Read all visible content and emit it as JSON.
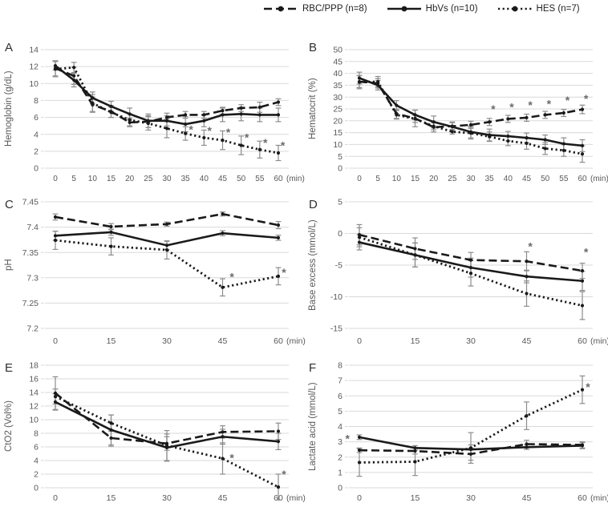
{
  "colors": {
    "line": "#1a1a1a",
    "error_bar": "#8c8c8c",
    "gridline": "#d9d9d9",
    "tick_label": "#595959",
    "asterisk": "#6b6b6b",
    "panel_letter": "#2f2f2f",
    "background": "#ffffff"
  },
  "legend": {
    "items": [
      {
        "label": "RBC/PPP (n=8)",
        "style": "dashed",
        "marker": "filled-circle"
      },
      {
        "label": "HbVs (n=10)",
        "style": "solid",
        "marker": "filled-circle"
      },
      {
        "label": "HES (n=7)",
        "style": "dotted",
        "marker": "filled-circle"
      }
    ]
  },
  "chart_data": [
    {
      "panel": "A",
      "type": "line",
      "ylabel": "Hemoglobin (g/dL)",
      "x_unit": "(min)",
      "x": [
        0,
        5,
        10,
        15,
        20,
        25,
        30,
        35,
        40,
        45,
        50,
        55,
        60
      ],
      "xlim": [
        0,
        60
      ],
      "ylim": [
        0,
        14
      ],
      "yticks": [
        0,
        2,
        4,
        6,
        8,
        10,
        12,
        14
      ],
      "ytick_labels": [
        "0",
        "2",
        "4",
        "6",
        "8",
        "10",
        "12",
        "14"
      ],
      "grid": true,
      "series": [
        {
          "name": "RBC/PPP (n=8)",
          "style": "dashed",
          "values": [
            11.8,
            10.9,
            7.5,
            6.7,
            5.4,
            5.5,
            6.0,
            6.3,
            6.3,
            6.8,
            7.1,
            7.2,
            7.8
          ],
          "errors": [
            0.9,
            1.0,
            0.9,
            0.7,
            0.5,
            0.7,
            0.5,
            0.4,
            0.4,
            0.4,
            0.4,
            0.6,
            0.4
          ]
        },
        {
          "name": "HbVs (n=10)",
          "style": "solid",
          "values": [
            12.1,
            10.4,
            8.3,
            7.3,
            6.4,
            5.6,
            5.6,
            5.2,
            5.6,
            6.3,
            6.4,
            6.3,
            6.3
          ],
          "errors": [
            0.5,
            0.8,
            0.7,
            0.6,
            0.7,
            0.8,
            0.6,
            0.9,
            0.7,
            0.8,
            0.8,
            0.8,
            0.8
          ]
        },
        {
          "name": "HES (n=7)",
          "style": "dotted",
          "values": [
            11.7,
            11.9,
            7.7,
            6.6,
            5.7,
            5.3,
            4.7,
            4.1,
            3.6,
            3.3,
            2.7,
            2.2,
            1.8
          ],
          "errors": [
            0.9,
            0.6,
            1.0,
            0.6,
            0.7,
            0.8,
            1.1,
            0.8,
            0.9,
            1.1,
            1.1,
            1.0,
            0.9
          ]
        }
      ],
      "asterisks": [
        [
          36.5,
          4.55
        ],
        [
          41.5,
          4.4
        ],
        [
          46.5,
          4.2
        ],
        [
          51.5,
          3.6
        ],
        [
          56.5,
          3.0
        ],
        [
          61.2,
          2.65
        ]
      ]
    },
    {
      "panel": "B",
      "type": "line",
      "ylabel": "Hematocrit (%)",
      "x_unit": "(min)",
      "x": [
        0,
        5,
        10,
        15,
        20,
        25,
        30,
        35,
        40,
        45,
        50,
        55,
        60
      ],
      "xlim": [
        0,
        60
      ],
      "ylim": [
        0,
        50
      ],
      "yticks": [
        0,
        5,
        10,
        15,
        20,
        25,
        30,
        35,
        40,
        45,
        50
      ],
      "ytick_labels": [
        "0",
        "5",
        "10",
        "15",
        "20",
        "25",
        "30",
        "35",
        "40",
        "45",
        "50"
      ],
      "grid": true,
      "series": [
        {
          "name": "RBC/PPP (n=8)",
          "style": "dashed",
          "values": [
            36.5,
            35.8,
            23.0,
            21.0,
            17.3,
            17.7,
            18.3,
            19.5,
            20.8,
            21.3,
            22.5,
            23.3,
            24.8
          ],
          "errors": [
            2.5,
            2.0,
            2.0,
            3.5,
            2.0,
            1.5,
            1.5,
            1.5,
            1.5,
            1.5,
            1.5,
            1.5,
            1.8
          ]
        },
        {
          "name": "HbVs (n=10)",
          "style": "solid",
          "values": [
            38.0,
            35.0,
            26.5,
            22.5,
            19.5,
            17.5,
            15.3,
            14.0,
            13.5,
            12.8,
            12.0,
            10.3,
            9.5
          ],
          "errors": [
            2.5,
            2.0,
            2.0,
            2.0,
            2.5,
            2.0,
            2.5,
            2.5,
            2.0,
            2.0,
            2.0,
            2.5,
            2.5
          ]
        },
        {
          "name": "HES (n=7)",
          "style": "dotted",
          "values": [
            36.3,
            36.5,
            22.5,
            20.8,
            17.7,
            15.4,
            14.8,
            13.3,
            11.5,
            10.5,
            8.3,
            7.5,
            6.0
          ],
          "errors": [
            2.8,
            2.2,
            1.8,
            1.5,
            1.5,
            1.0,
            2.5,
            2.0,
            2.0,
            2.5,
            2.5,
            2.5,
            3.5
          ]
        }
      ],
      "asterisks": [
        [
          36,
          24.9
        ],
        [
          41,
          25.7
        ],
        [
          46,
          26.6
        ],
        [
          51,
          27.1
        ],
        [
          56,
          28.6
        ],
        [
          61,
          29.2
        ]
      ]
    },
    {
      "panel": "C",
      "type": "line",
      "ylabel": "pH",
      "x_unit": "(min)",
      "x": [
        0,
        15,
        30,
        45,
        60
      ],
      "xlim": [
        0,
        60
      ],
      "ylim": [
        7.2,
        7.45
      ],
      "yticks": [
        7.2,
        7.25,
        7.3,
        7.35,
        7.4,
        7.45
      ],
      "ytick_labels": [
        "7.2",
        "7.25",
        "7.3",
        "7.35",
        "7.4",
        "7.45"
      ],
      "grid": true,
      "series": [
        {
          "name": "RBC/PPP (n=8)",
          "style": "dashed",
          "values": [
            7.42,
            7.401,
            7.406,
            7.426,
            7.404
          ],
          "errors": [
            0.006,
            0.006,
            0.004,
            0.004,
            0.007
          ]
        },
        {
          "name": "HbVs (n=10)",
          "style": "solid",
          "values": [
            7.383,
            7.39,
            7.364,
            7.388,
            7.379
          ],
          "errors": [
            0.009,
            0.006,
            0.008,
            0.005,
            0.005
          ]
        },
        {
          "name": "HES (n=7)",
          "style": "dotted",
          "values": [
            7.374,
            7.362,
            7.355,
            7.281,
            7.303
          ],
          "errors": [
            0.018,
            0.017,
            0.018,
            0.017,
            0.017
          ]
        }
      ],
      "asterisks": [
        [
          47.5,
          7.301
        ],
        [
          61.5,
          7.31
        ]
      ]
    },
    {
      "panel": "D",
      "type": "line",
      "ylabel": "Base excess (mmol/L)",
      "x_unit": "(min)",
      "x": [
        0,
        15,
        30,
        45,
        60
      ],
      "xlim": [
        0,
        60
      ],
      "ylim": [
        -15,
        5
      ],
      "yticks": [
        -15,
        -10,
        -5,
        0,
        5
      ],
      "ytick_labels": [
        "-15",
        "-10",
        "-5",
        "0",
        "5"
      ],
      "grid": true,
      "series": [
        {
          "name": "RBC/PPP (n=8)",
          "style": "dashed",
          "values": [
            -0.2,
            -2.4,
            -4.2,
            -4.4,
            -5.9
          ],
          "errors": [
            1.6,
            1.7,
            1.2,
            1.5,
            1.2
          ]
        },
        {
          "name": "HbVs (n=10)",
          "style": "solid",
          "values": [
            -1.4,
            -3.4,
            -5.4,
            -6.8,
            -7.5
          ],
          "errors": [
            1.2,
            1.9,
            1.5,
            1.0,
            1.5
          ]
        },
        {
          "name": "HES (n=7)",
          "style": "dotted",
          "values": [
            -0.6,
            -3.4,
            -6.3,
            -9.5,
            -11.4
          ],
          "errors": [
            1.5,
            1.9,
            2.0,
            2.0,
            2.2
          ]
        }
      ],
      "asterisks": [
        [
          46,
          -2.1
        ],
        [
          61,
          -3.0
        ]
      ]
    },
    {
      "panel": "E",
      "type": "line",
      "ylabel": "CtO2 (Vol%)",
      "x_unit": "(min)",
      "x": [
        0,
        15,
        30,
        45,
        60
      ],
      "xlim": [
        0,
        60
      ],
      "ylim": [
        0,
        18
      ],
      "yticks": [
        0,
        2,
        4,
        6,
        8,
        10,
        12,
        14,
        16,
        18
      ],
      "ytick_labels": [
        "0",
        "2",
        "4",
        "6",
        "8",
        "10",
        "12",
        "14",
        "16",
        "18"
      ],
      "grid": true,
      "series": [
        {
          "name": "RBC/PPP (n=8)",
          "style": "dashed",
          "values": [
            13.9,
            7.3,
            6.5,
            8.2,
            8.3
          ],
          "errors": [
            2.4,
            1.2,
            1.0,
            0.9,
            1.2
          ]
        },
        {
          "name": "HbVs (n=10)",
          "style": "solid",
          "values": [
            12.6,
            8.5,
            5.9,
            7.5,
            6.8
          ],
          "errors": [
            1.2,
            2.2,
            2.0,
            1.1,
            1.2
          ]
        },
        {
          "name": "HES (n=7)",
          "style": "dotted",
          "values": [
            13.4,
            9.5,
            6.2,
            4.3,
            0.1
          ],
          "errors": [
            1.1,
            1.2,
            2.2,
            2.3,
            1.9
          ]
        }
      ],
      "asterisks": [
        [
          47.5,
          4.35
        ],
        [
          61.5,
          1.95
        ]
      ]
    },
    {
      "panel": "F",
      "type": "line",
      "ylabel": "Lactate acid (mmol/L)",
      "x_unit": "(min)",
      "x": [
        0,
        15,
        30,
        45,
        60
      ],
      "xlim": [
        0,
        60
      ],
      "ylim": [
        0,
        8
      ],
      "yticks": [
        0,
        1,
        2,
        3,
        4,
        5,
        6,
        7,
        8
      ],
      "ytick_labels": [
        "0",
        "1",
        "2",
        "3",
        "4",
        "5",
        "6",
        "7",
        "8"
      ],
      "grid": true,
      "series": [
        {
          "name": "RBC/PPP (n=8)",
          "style": "dashed",
          "values": [
            2.45,
            2.4,
            2.2,
            2.85,
            2.8
          ],
          "errors": [
            0.15,
            0.2,
            0.4,
            0.25,
            0.2
          ]
        },
        {
          "name": "HbVs (n=10)",
          "style": "solid",
          "values": [
            3.3,
            2.6,
            2.5,
            2.65,
            2.75
          ],
          "errors": [
            0.15,
            0.15,
            0.3,
            0.15,
            0.2
          ]
        },
        {
          "name": "HES (n=7)",
          "style": "dotted",
          "values": [
            1.65,
            1.7,
            2.6,
            4.7,
            6.4
          ],
          "errors": [
            0.9,
            0.9,
            1.0,
            0.9,
            0.9
          ]
        }
      ],
      "asterisks": [
        [
          -3.2,
          3.2
        ],
        [
          61.5,
          6.55
        ]
      ]
    }
  ]
}
